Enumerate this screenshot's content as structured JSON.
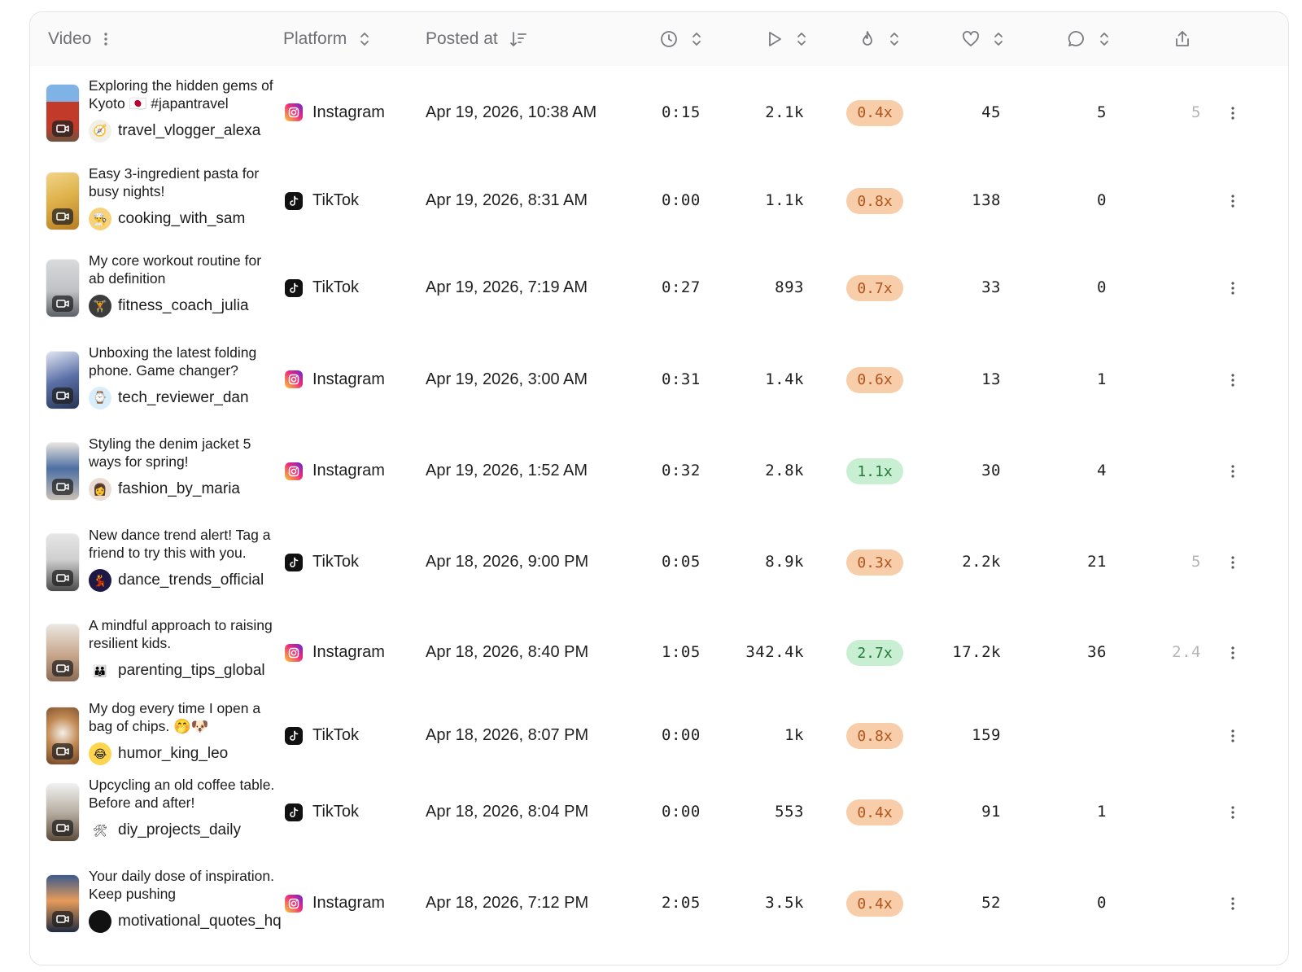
{
  "header": {
    "video_label": "Video",
    "platform_label": "Platform",
    "posted_label": "Posted at",
    "icons": [
      "kebab-icon",
      "sort-icon",
      "sort-desc-icon",
      "clock-icon",
      "play-icon",
      "flame-icon",
      "heart-icon",
      "comment-icon",
      "share-icon"
    ]
  },
  "colors": {
    "badge_low_bg": "#f7cdaa",
    "badge_high_bg": "#c9efd2",
    "instagram": "#ee2a7b",
    "tiktok": "#111111"
  },
  "rows": [
    {
      "title": "Exploring the hidden gems of Kyoto 🇯🇵 #japantravel",
      "creator": "travel_vlogger_alexa",
      "avatar": "compass",
      "platform": "Instagram",
      "posted": "Apr 19, 2026, 10:38 AM",
      "duration": "0:15",
      "views": "2.1k",
      "ratio": "0.4x",
      "ratio_level": "low",
      "likes": "45",
      "comments": "5",
      "shares": "5"
    },
    {
      "title": "Easy 3-ingredient pasta for busy nights!",
      "creator": "cooking_with_sam",
      "avatar": "chef",
      "platform": "TikTok",
      "posted": "Apr 19, 2026, 8:31 AM",
      "duration": "0:00",
      "views": "1.1k",
      "ratio": "0.8x",
      "ratio_level": "low",
      "likes": "138",
      "comments": "0",
      "shares": ""
    },
    {
      "title": "My core workout routine for ab definition",
      "creator": "fitness_coach_julia",
      "avatar": "dumbbell",
      "platform": "TikTok",
      "posted": "Apr 19, 2026, 7:19 AM",
      "duration": "0:27",
      "views": "893",
      "ratio": "0.7x",
      "ratio_level": "low",
      "likes": "33",
      "comments": "0",
      "shares": ""
    },
    {
      "title": "Unboxing the latest folding phone. Game changer?",
      "creator": "tech_reviewer_dan",
      "avatar": "watch",
      "platform": "Instagram",
      "posted": "Apr 19, 2026, 3:00 AM",
      "duration": "0:31",
      "views": "1.4k",
      "ratio": "0.6x",
      "ratio_level": "low",
      "likes": "13",
      "comments": "1",
      "shares": ""
    },
    {
      "title": "Styling the denim jacket 5 ways for spring!",
      "creator": "fashion_by_maria",
      "avatar": "woman",
      "platform": "Instagram",
      "posted": "Apr 19, 2026, 1:52 AM",
      "duration": "0:32",
      "views": "2.8k",
      "ratio": "1.1x",
      "ratio_level": "high",
      "likes": "30",
      "comments": "4",
      "shares": ""
    },
    {
      "title": "New dance trend alert! Tag a friend to try this with you.",
      "creator": "dance_trends_official",
      "avatar": "dancers",
      "platform": "TikTok",
      "posted": "Apr 18, 2026, 9:00 PM",
      "duration": "0:05",
      "views": "8.9k",
      "ratio": "0.3x",
      "ratio_level": "low",
      "likes": "2.2k",
      "comments": "21",
      "shares": "5"
    },
    {
      "title": "A mindful approach to raising resilient kids.",
      "creator": "parenting_tips_global",
      "avatar": "family",
      "platform": "Instagram",
      "posted": "Apr 18, 2026, 8:40 PM",
      "duration": "1:05",
      "views": "342.4k",
      "ratio": "2.7x",
      "ratio_level": "high",
      "likes": "17.2k",
      "comments": "36",
      "shares": "2.4"
    },
    {
      "title": "My dog every time I open a bag of chips. 🤭🐶",
      "creator": "humor_king_leo",
      "avatar": "laugh",
      "platform": "TikTok",
      "posted": "Apr 18, 2026, 8:07 PM",
      "duration": "0:00",
      "views": "1k",
      "ratio": "0.8x",
      "ratio_level": "low",
      "likes": "159",
      "comments": "",
      "shares": ""
    },
    {
      "title": "Upcycling an old coffee table. Before and after!",
      "creator": "diy_projects_daily",
      "avatar": "tools",
      "platform": "TikTok",
      "posted": "Apr 18, 2026, 8:04 PM",
      "duration": "0:00",
      "views": "553",
      "ratio": "0.4x",
      "ratio_level": "low",
      "likes": "91",
      "comments": "1",
      "shares": ""
    },
    {
      "title": "Your daily dose of inspiration. Keep pushing",
      "creator": "motivational_quotes_hq",
      "avatar": "dark",
      "platform": "Instagram",
      "posted": "Apr 18, 2026, 7:12 PM",
      "duration": "2:05",
      "views": "3.5k",
      "ratio": "0.4x",
      "ratio_level": "low",
      "likes": "52",
      "comments": "0",
      "shares": ""
    }
  ]
}
